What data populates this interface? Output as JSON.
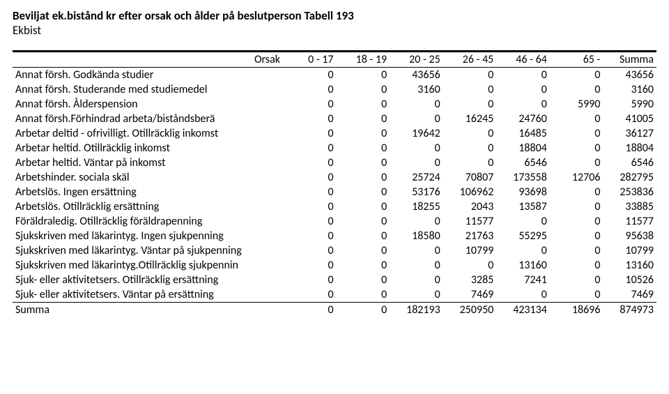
{
  "title": "Beviljat ek.bistånd kr efter orsak och ålder på beslutperson Tabell 193",
  "subtitle": "Ekbist",
  "header": {
    "c0": "Orsak",
    "c1": "0 - 17",
    "c2": "18 - 19",
    "c3": "20 - 25",
    "c4": "26 - 45",
    "c5": "46 - 64",
    "c6": "65 -",
    "c7": "Summa"
  },
  "rows": [
    {
      "label": "Annat försh. Godkända studier",
      "v": [
        "0",
        "0",
        "43656",
        "0",
        "0",
        "0",
        "43656"
      ]
    },
    {
      "label": "Annat försh. Studerande med studiemedel",
      "v": [
        "0",
        "0",
        "3160",
        "0",
        "0",
        "0",
        "3160"
      ]
    },
    {
      "label": "Annat försh. Ålderspension",
      "v": [
        "0",
        "0",
        "0",
        "0",
        "0",
        "5990",
        "5990"
      ]
    },
    {
      "label": "Annat försh.Förhindrad arbeta/biståndsberä",
      "v": [
        "0",
        "0",
        "0",
        "16245",
        "24760",
        "0",
        "41005"
      ]
    },
    {
      "label": "Arbetar deltid - ofrivilligt. Otillräcklig inkomst",
      "v": [
        "0",
        "0",
        "19642",
        "0",
        "16485",
        "0",
        "36127"
      ]
    },
    {
      "label": "Arbetar heltid. Otillräcklig inkomst",
      "v": [
        "0",
        "0",
        "0",
        "0",
        "18804",
        "0",
        "18804"
      ]
    },
    {
      "label": "Arbetar heltid. Väntar på inkomst",
      "v": [
        "0",
        "0",
        "0",
        "0",
        "6546",
        "0",
        "6546"
      ]
    },
    {
      "label": "Arbetshinder. sociala skäl",
      "v": [
        "0",
        "0",
        "25724",
        "70807",
        "173558",
        "12706",
        "282795"
      ]
    },
    {
      "label": "Arbetslös. Ingen ersättning",
      "v": [
        "0",
        "0",
        "53176",
        "106962",
        "93698",
        "0",
        "253836"
      ]
    },
    {
      "label": "Arbetslös. Otillräcklig ersättning",
      "v": [
        "0",
        "0",
        "18255",
        "2043",
        "13587",
        "0",
        "33885"
      ]
    },
    {
      "label": "Föräldraledig. Otillräcklig föräldrapenning",
      "v": [
        "0",
        "0",
        "0",
        "11577",
        "0",
        "0",
        "11577"
      ]
    },
    {
      "label": "Sjukskriven med läkarintyg. Ingen sjukpenning",
      "v": [
        "0",
        "0",
        "18580",
        "21763",
        "55295",
        "0",
        "95638"
      ]
    },
    {
      "label": "Sjukskriven med läkarintyg. Väntar på sjukpenning",
      "v": [
        "0",
        "0",
        "0",
        "10799",
        "0",
        "0",
        "10799"
      ]
    },
    {
      "label": "Sjukskriven med läkarintyg.Otillräcklig sjukpennin",
      "v": [
        "0",
        "0",
        "0",
        "0",
        "13160",
        "0",
        "13160"
      ]
    },
    {
      "label": "Sjuk- eller aktivitetsers. Otillräcklig ersättning",
      "v": [
        "0",
        "0",
        "0",
        "3285",
        "7241",
        "0",
        "10526"
      ]
    },
    {
      "label": "Sjuk- eller aktivitetsers. Väntar på ersättning",
      "v": [
        "0",
        "0",
        "0",
        "7469",
        "0",
        "0",
        "7469"
      ]
    },
    {
      "label": "Summa",
      "v": [
        "0",
        "0",
        "182193",
        "250950",
        "423134",
        "18696",
        "874973"
      ],
      "summa": true
    }
  ]
}
